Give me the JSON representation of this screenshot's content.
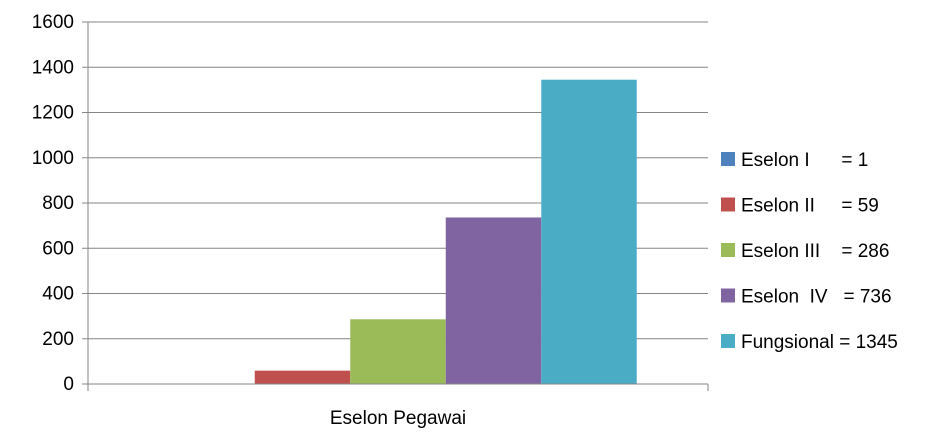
{
  "chart_data": {
    "type": "bar",
    "categories": [
      "Eselon Pegawai"
    ],
    "series": [
      {
        "name": "Eselon I      = 1",
        "values": [
          1
        ],
        "color": "#4F81BD"
      },
      {
        "name": "Eselon II     = 59",
        "values": [
          59
        ],
        "color": "#C0504D"
      },
      {
        "name": "Eselon III    = 286",
        "values": [
          286
        ],
        "color": "#9BBB59"
      },
      {
        "name": "Eselon  IV   = 736",
        "values": [
          736
        ],
        "color": "#8064A2"
      },
      {
        "name": "Fungsional = 1345",
        "values": [
          1345
        ],
        "color": "#4BACC6"
      }
    ],
    "yticks": [
      "0",
      "200",
      "400",
      "600",
      "800",
      "1000",
      "1200",
      "1400",
      "1600"
    ],
    "ylim": [
      0,
      1600
    ],
    "grid": true,
    "legend": "right",
    "title": "",
    "xlabel": "",
    "ylabel": ""
  }
}
